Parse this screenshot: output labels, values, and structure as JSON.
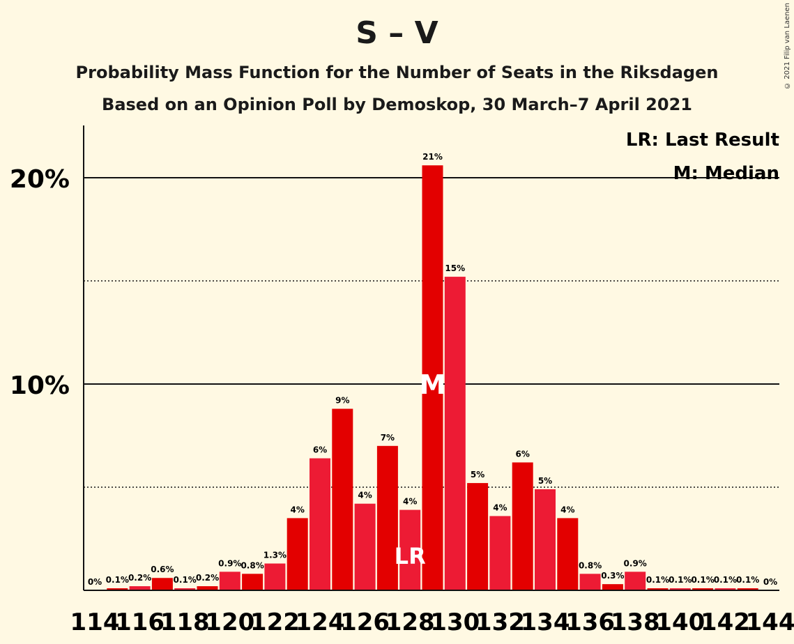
{
  "title": "S – V",
  "subtitle": "Probability Mass Function for the Number of Seats in the Riksdagen",
  "subtitle2": "Based on an Opinion Poll by Demoskop, 30 March–7 April 2021",
  "copyright": "© 2021 Filip van Laenen",
  "legend": {
    "lr": "LR: Last Result",
    "m": "M: Median"
  },
  "markers": {
    "lr_label": "LR",
    "m_label": "M"
  },
  "colors": {
    "background": "#FFF9E3",
    "bar_dark": "#E30000",
    "bar_light": "#ED1B34"
  },
  "chart_data": {
    "type": "bar",
    "x": [
      114,
      115,
      116,
      117,
      118,
      119,
      120,
      121,
      122,
      123,
      124,
      125,
      126,
      127,
      128,
      129,
      130,
      131,
      132,
      133,
      134,
      135,
      136,
      137,
      138,
      139,
      140,
      141,
      142,
      143,
      144
    ],
    "values": [
      0,
      0.1,
      0.2,
      0.6,
      0.1,
      0.2,
      0.9,
      0.8,
      1.3,
      3.5,
      6.4,
      8.8,
      4.2,
      7.0,
      3.9,
      20.6,
      15.2,
      5.2,
      3.6,
      6.2,
      4.9,
      3.5,
      0.8,
      0.3,
      0.9,
      0.1,
      0.1,
      0.1,
      0.1,
      0.1,
      0
    ],
    "data_labels": [
      "0%",
      "0.1%",
      "0.2%",
      "0.6%",
      "0.1%",
      "0.2%",
      "0.9%",
      "0.8%",
      "1.3%",
      "4%",
      "6%",
      "9%",
      "4%",
      "7%",
      "4%",
      "21%",
      "15%",
      "5%",
      "4%",
      "6%",
      "5%",
      "4%",
      "0.8%",
      "0.3%",
      "0.9%",
      "0.1%",
      "0.1%",
      "0.1%",
      "0.1%",
      "0.1%",
      "0%"
    ],
    "xtick_labels": [
      "114",
      "116",
      "118",
      "120",
      "122",
      "124",
      "126",
      "128",
      "130",
      "132",
      "134",
      "136",
      "138",
      "140",
      "142",
      "144"
    ],
    "ytick_labels": [
      "10%",
      "20%"
    ],
    "yticks": [
      10,
      20
    ],
    "minor_gridlines": [
      5,
      15
    ],
    "ylim": [
      0,
      22.5
    ],
    "last_result": 128,
    "median": 129
  }
}
